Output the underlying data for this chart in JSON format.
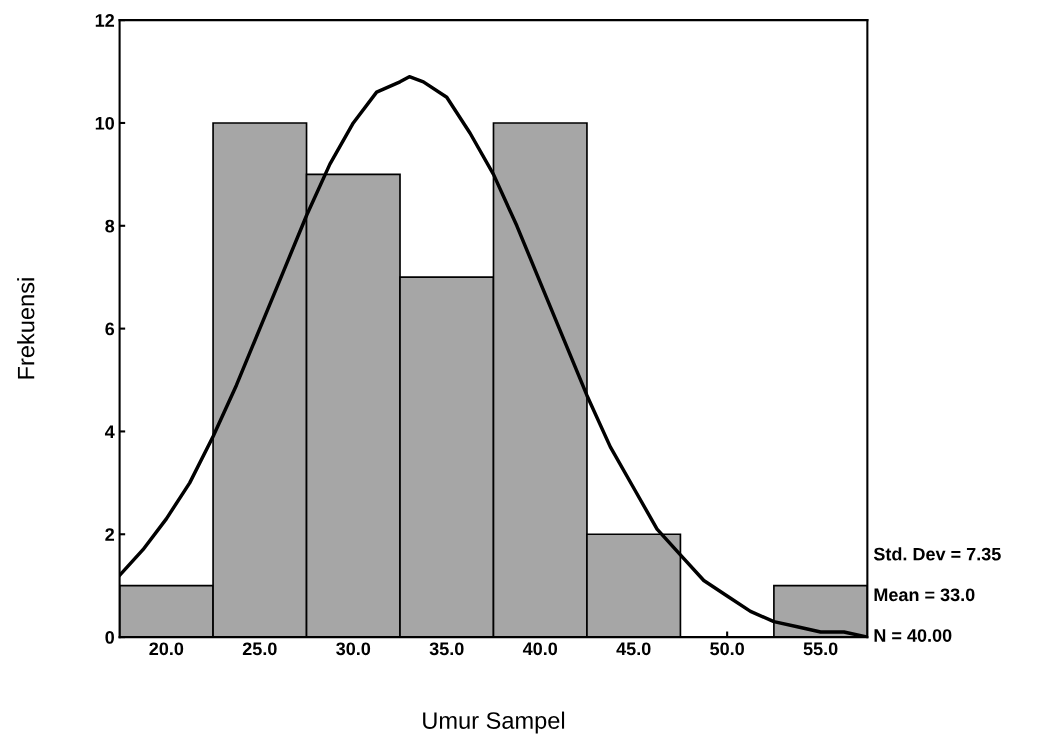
{
  "chart_data": {
    "type": "histogram",
    "xlabel": "Umur Sampel",
    "ylabel": "Frekuensi",
    "bins": [
      17.5,
      22.5,
      27.5,
      32.5,
      37.5,
      42.5,
      47.5,
      52.5,
      57.5
    ],
    "values": [
      1,
      10,
      9,
      7,
      10,
      2,
      0,
      1
    ],
    "color": "#a6a6a6",
    "series": [
      {
        "type": "line",
        "color": "#000000",
        "x": [
          17.5,
          18.75,
          20,
          21.25,
          22.5,
          23.75,
          25,
          26.25,
          27.5,
          28.75,
          30,
          31.25,
          32.5,
          33,
          33.75,
          35,
          36.25,
          37.5,
          38.75,
          40,
          41.25,
          42.5,
          43.75,
          45,
          46.25,
          47.5,
          48.75,
          50,
          51.25,
          52.5,
          53.75,
          55,
          56.25,
          57.5
        ],
        "values": [
          1.2,
          1.7,
          2.3,
          3.0,
          3.9,
          4.9,
          6.0,
          7.1,
          8.2,
          9.2,
          10.0,
          10.6,
          10.8,
          10.9,
          10.8,
          10.5,
          9.8,
          9.0,
          8.0,
          6.9,
          5.8,
          4.7,
          3.7,
          2.9,
          2.1,
          1.6,
          1.1,
          0.8,
          0.5,
          0.3,
          0.2,
          0.1,
          0.1,
          0.0
        ]
      }
    ],
    "xlim": [
      17.5,
      57.5
    ],
    "xticks": [
      {
        "value": 20,
        "label": "20.0"
      },
      {
        "value": 25,
        "label": "25.0"
      },
      {
        "value": 30,
        "label": "30.0"
      },
      {
        "value": 35,
        "label": "35.0"
      },
      {
        "value": 40,
        "label": "40.0"
      },
      {
        "value": 45,
        "label": "45.0"
      },
      {
        "value": 50,
        "label": "50.0"
      },
      {
        "value": 55,
        "label": "55.0"
      }
    ],
    "ylim": [
      0,
      12
    ],
    "yticks": [
      0,
      2,
      4,
      6,
      8,
      10,
      12
    ],
    "annotations": [
      "Std. Dev = 7.35",
      "Mean = 33.0",
      "N = 40.00"
    ],
    "grid": false,
    "legend": false
  }
}
